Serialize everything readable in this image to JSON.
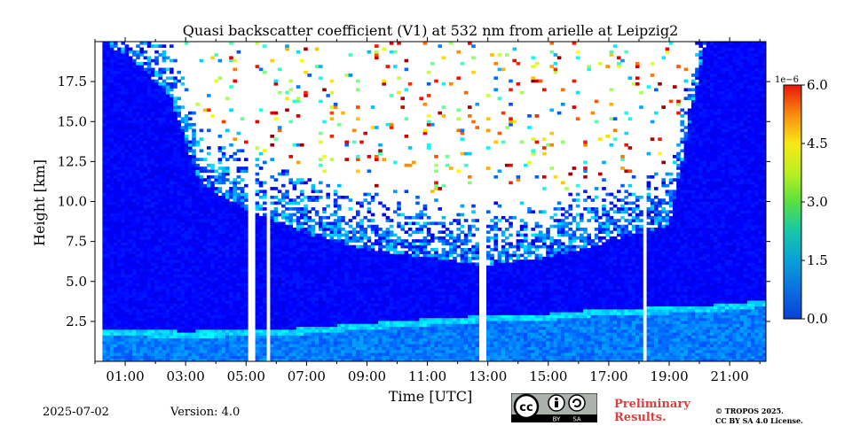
{
  "chart_data": {
    "type": "heatmap",
    "title": "Quasi backscatter coefficient (V1) at 532 nm from arielle at Leipzig2",
    "xlabel": "Time [UTC]",
    "ylabel": "Height [km]",
    "xlim": [
      0.0,
      22.2
    ],
    "ylim": [
      0.0,
      20.0
    ],
    "x_ticks": [
      {
        "value": 1,
        "label": "01:00"
      },
      {
        "value": 3,
        "label": "03:00"
      },
      {
        "value": 5,
        "label": "05:00"
      },
      {
        "value": 7,
        "label": "07:00"
      },
      {
        "value": 9,
        "label": "09:00"
      },
      {
        "value": 11,
        "label": "11:00"
      },
      {
        "value": 13,
        "label": "13:00"
      },
      {
        "value": 15,
        "label": "15:00"
      },
      {
        "value": 17,
        "label": "17:00"
      },
      {
        "value": 19,
        "label": "19:00"
      },
      {
        "value": 21,
        "label": "21:00"
      }
    ],
    "y_ticks": [
      {
        "value": 2.5,
        "label": "2.5"
      },
      {
        "value": 5.0,
        "label": "5.0"
      },
      {
        "value": 7.5,
        "label": "7.5"
      },
      {
        "value": 10.0,
        "label": "10.0"
      },
      {
        "value": 12.5,
        "label": "12.5"
      },
      {
        "value": 15.0,
        "label": "15.0"
      },
      {
        "value": 17.5,
        "label": "17.5"
      }
    ],
    "colorbar": {
      "range": [
        0.0,
        6.0
      ],
      "exponent_label": "1e−6",
      "ticks": [
        {
          "value": 0.0,
          "label": "0.0"
        },
        {
          "value": 1.5,
          "label": "1.5"
        },
        {
          "value": 3.0,
          "label": "3.0"
        },
        {
          "value": 4.5,
          "label": "4.5"
        },
        {
          "value": 6.0,
          "label": "6.0"
        }
      ],
      "colormap": "jet-like (blue-cyan-green-yellow-red)"
    },
    "no_data_gaps_utc": [
      [
        5.05,
        5.25
      ],
      [
        5.65,
        5.85
      ],
      [
        12.75,
        12.9
      ],
      [
        18.1,
        18.25
      ]
    ],
    "boundary_layer_top_km": [
      {
        "x": 0.3,
        "y": 2.0
      },
      {
        "x": 3.0,
        "y": 1.9
      },
      {
        "x": 6.0,
        "y": 2.0
      },
      {
        "x": 9.0,
        "y": 2.4
      },
      {
        "x": 12.0,
        "y": 2.8
      },
      {
        "x": 15.0,
        "y": 3.0
      },
      {
        "x": 17.0,
        "y": 3.3
      },
      {
        "x": 19.0,
        "y": 3.4
      },
      {
        "x": 21.0,
        "y": 3.6
      },
      {
        "x": 22.0,
        "y": 3.8
      }
    ],
    "signal_top_km": [
      {
        "x": 0.3,
        "y": 20.0
      },
      {
        "x": 1.5,
        "y": 18.5
      },
      {
        "x": 2.5,
        "y": 16.5
      },
      {
        "x": 3.5,
        "y": 11.0
      },
      {
        "x": 5.0,
        "y": 9.5
      },
      {
        "x": 7.0,
        "y": 8.0
      },
      {
        "x": 9.0,
        "y": 7.0
      },
      {
        "x": 11.0,
        "y": 6.5
      },
      {
        "x": 13.0,
        "y": 6.0
      },
      {
        "x": 15.0,
        "y": 6.5
      },
      {
        "x": 17.0,
        "y": 7.5
      },
      {
        "x": 19.0,
        "y": 8.5
      },
      {
        "x": 20.2,
        "y": 20.0
      },
      {
        "x": 22.0,
        "y": 20.0
      }
    ],
    "grid": false
  },
  "footer": {
    "date": "2025-07-02",
    "version": "Version: 4.0",
    "preliminary_line1": "Preliminary",
    "preliminary_line2": "Results.",
    "copyright_line1": "© TROPOS 2025.",
    "copyright_line2": "CC BY SA 4.0 License.",
    "cc_label_by": "BY",
    "cc_label_sa": "SA",
    "cc_text": "cc"
  },
  "colors": {
    "background_blue": "#0a52d8",
    "prelim_red": "#e23b3b"
  }
}
